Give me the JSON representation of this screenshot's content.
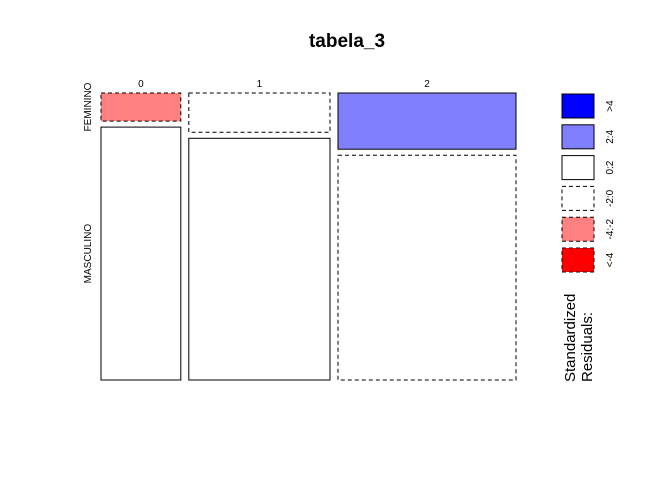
{
  "chart_data": {
    "type": "mosaic",
    "title": "tabela_3",
    "columns": [
      "0",
      "1",
      "2"
    ],
    "rows": [
      "FEMININO",
      "MASCULINO"
    ],
    "column_proportions": [
      0.13,
      0.23,
      0.29
    ],
    "cells": [
      {
        "column": "0",
        "row": "FEMININO",
        "share": 0.1,
        "residual_class": "-4:-2"
      },
      {
        "column": "0",
        "row": "MASCULINO",
        "share": 0.9,
        "residual_class": "0:2"
      },
      {
        "column": "1",
        "row": "FEMININO",
        "share": 0.14,
        "residual_class": "-2:0"
      },
      {
        "column": "1",
        "row": "MASCULINO",
        "share": 0.86,
        "residual_class": "0:2"
      },
      {
        "column": "2",
        "row": "FEMININO",
        "share": 0.2,
        "residual_class": "2:4"
      },
      {
        "column": "2",
        "row": "MASCULINO",
        "share": 0.8,
        "residual_class": "-2:0"
      }
    ],
    "legend": {
      "title_line1": "Standardized",
      "title_line2": "Residuals:",
      "entries": [
        {
          "label": ">4",
          "color": "#0000FF",
          "dashed": false
        },
        {
          "label": "2:4",
          "color": "#8080FF",
          "dashed": false
        },
        {
          "label": "0:2",
          "color": "#FFFFFF",
          "dashed": false
        },
        {
          "label": "-2:0",
          "color": "#FFFFFF",
          "dashed": true
        },
        {
          "label": "-4:-2",
          "color": "#FF8080",
          "dashed": true
        },
        {
          "label": "<-4",
          "color": "#FF0000",
          "dashed": true
        }
      ]
    }
  }
}
